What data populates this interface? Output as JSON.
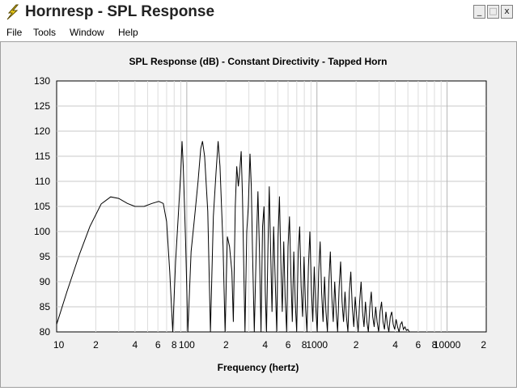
{
  "window": {
    "title": "Hornresp - SPL Response",
    "minimize_glyph": "_",
    "maximize_glyph": "□",
    "close_glyph": "x",
    "icon": "lightning-icon"
  },
  "menu": {
    "items": [
      "File",
      "Tools",
      "Window",
      "Help"
    ]
  },
  "chart_data": {
    "type": "line",
    "title": "SPL Response (dB) - Constant Directivity - Tapped Horn",
    "xlabel": "Frequency (hertz)",
    "ylabel": "",
    "x_scale": "log",
    "xlim": [
      10,
      20000
    ],
    "ylim": [
      80,
      130
    ],
    "y_ticks": [
      "130",
      "125",
      "120",
      "115",
      "110",
      "105",
      "100",
      "95",
      "90",
      "85",
      "80"
    ],
    "x_tick_labels": [
      {
        "value": 10,
        "label": "10"
      },
      {
        "value": 20,
        "label": "2"
      },
      {
        "value": 40,
        "label": "4"
      },
      {
        "value": 60,
        "label": "6"
      },
      {
        "value": 80,
        "label": "8"
      },
      {
        "value": 100,
        "label": "100"
      },
      {
        "value": 200,
        "label": "2"
      },
      {
        "value": 400,
        "label": "4"
      },
      {
        "value": 600,
        "label": "6"
      },
      {
        "value": 800,
        "label": "8"
      },
      {
        "value": 1000,
        "label": "1000"
      },
      {
        "value": 2000,
        "label": "2"
      },
      {
        "value": 4000,
        "label": "4"
      },
      {
        "value": 6000,
        "label": "6"
      },
      {
        "value": 8000,
        "label": "8"
      },
      {
        "value": 10000,
        "label": "10000"
      },
      {
        "value": 20000,
        "label": "2"
      }
    ],
    "grid": true,
    "line_color": "#000000",
    "series": [
      {
        "values": [
          [
            10,
            81.5
          ],
          [
            12,
            88
          ],
          [
            15,
            95.5
          ],
          [
            18,
            101
          ],
          [
            22,
            105.5
          ],
          [
            26,
            106.9
          ],
          [
            30,
            106.6
          ],
          [
            35,
            105.6
          ],
          [
            40,
            105
          ],
          [
            47,
            105
          ],
          [
            54,
            105.6
          ],
          [
            61,
            106
          ],
          [
            66,
            105.6
          ],
          [
            70,
            102
          ],
          [
            74,
            92
          ],
          [
            78,
            80
          ],
          [
            82,
            94
          ],
          [
            86,
            103
          ],
          [
            90,
            112
          ],
          [
            92,
            118
          ],
          [
            94,
            113
          ],
          [
            98,
            98
          ],
          [
            102,
            80
          ],
          [
            108,
            96
          ],
          [
            115,
            103
          ],
          [
            122,
            110
          ],
          [
            128,
            116.5
          ],
          [
            132,
            118
          ],
          [
            137,
            115
          ],
          [
            145,
            104
          ],
          [
            152,
            80
          ],
          [
            160,
            103
          ],
          [
            168,
            112
          ],
          [
            174,
            118
          ],
          [
            180,
            113
          ],
          [
            190,
            97
          ],
          [
            197,
            80
          ],
          [
            205,
            99
          ],
          [
            213,
            97
          ],
          [
            222,
            92
          ],
          [
            228,
            82
          ],
          [
            236,
            105
          ],
          [
            242,
            113
          ],
          [
            249,
            109
          ],
          [
            255,
            112
          ],
          [
            262,
            116
          ],
          [
            268,
            107
          ],
          [
            275,
            91
          ],
          [
            280,
            80
          ],
          [
            289,
            100
          ],
          [
            297,
            105
          ],
          [
            306,
            115.5
          ],
          [
            313,
            109
          ],
          [
            320,
            96
          ],
          [
            330,
            80
          ],
          [
            342,
            97
          ],
          [
            352,
            108
          ],
          [
            362,
            96
          ],
          [
            372,
            80
          ],
          [
            382,
            101
          ],
          [
            392,
            105
          ],
          [
            401,
            88
          ],
          [
            410,
            80
          ],
          [
            420,
            96
          ],
          [
            430,
            109
          ],
          [
            440,
            97
          ],
          [
            452,
            84
          ],
          [
            465,
            101
          ],
          [
            478,
            90
          ],
          [
            491,
            80
          ],
          [
            503,
            99
          ],
          [
            515,
            107
          ],
          [
            528,
            94
          ],
          [
            542,
            84
          ],
          [
            556,
            98
          ],
          [
            570,
            87
          ],
          [
            585,
            80
          ],
          [
            600,
            97
          ],
          [
            615,
            103
          ],
          [
            631,
            91
          ],
          [
            647,
            82
          ],
          [
            664,
            96
          ],
          [
            681,
            86
          ],
          [
            699,
            80
          ],
          [
            718,
            96
          ],
          [
            737,
            101
          ],
          [
            756,
            89
          ],
          [
            776,
            83
          ],
          [
            796,
            95
          ],
          [
            817,
            85
          ],
          [
            838,
            80
          ],
          [
            860,
            93
          ],
          [
            883,
            100
          ],
          [
            906,
            89
          ],
          [
            930,
            82
          ],
          [
            954,
            93
          ],
          [
            979,
            85
          ],
          [
            1005,
            80
          ],
          [
            1031,
            92
          ],
          [
            1058,
            98
          ],
          [
            1086,
            88
          ],
          [
            1114,
            82
          ],
          [
            1143,
            91
          ],
          [
            1173,
            84
          ],
          [
            1204,
            80
          ],
          [
            1236,
            90
          ],
          [
            1268,
            96
          ],
          [
            1301,
            87
          ],
          [
            1335,
            82
          ],
          [
            1370,
            90
          ],
          [
            1406,
            84
          ],
          [
            1443,
            80
          ],
          [
            1481,
            89
          ],
          [
            1520,
            94
          ],
          [
            1560,
            86
          ],
          [
            1601,
            82
          ],
          [
            1643,
            88
          ],
          [
            1686,
            83
          ],
          [
            1730,
            80
          ],
          [
            1775,
            88
          ],
          [
            1822,
            92
          ],
          [
            1870,
            85
          ],
          [
            1919,
            81
          ],
          [
            1969,
            87
          ],
          [
            2021,
            83
          ],
          [
            2074,
            80
          ],
          [
            2128,
            86
          ],
          [
            2184,
            90
          ],
          [
            2241,
            84
          ],
          [
            2300,
            81
          ],
          [
            2360,
            86
          ],
          [
            2422,
            82
          ],
          [
            2485,
            80
          ],
          [
            2550,
            85
          ],
          [
            2617,
            88
          ],
          [
            2686,
            83
          ],
          [
            2756,
            81
          ],
          [
            2828,
            85
          ],
          [
            2902,
            82
          ],
          [
            2978,
            80
          ],
          [
            3056,
            84
          ],
          [
            3136,
            86
          ],
          [
            3218,
            82
          ],
          [
            3302,
            80.5
          ],
          [
            3389,
            84
          ],
          [
            3477,
            81.5
          ],
          [
            3569,
            80
          ],
          [
            3662,
            83
          ],
          [
            3758,
            84
          ],
          [
            3856,
            81.5
          ],
          [
            3957,
            80.5
          ],
          [
            4061,
            82.5
          ],
          [
            4167,
            81
          ],
          [
            4276,
            80
          ],
          [
            4388,
            81.5
          ],
          [
            4503,
            82
          ],
          [
            4621,
            80.5
          ],
          [
            4742,
            81
          ],
          [
            4866,
            80.3
          ],
          [
            4994,
            80.5
          ],
          [
            5124,
            80
          ]
        ]
      }
    ]
  }
}
